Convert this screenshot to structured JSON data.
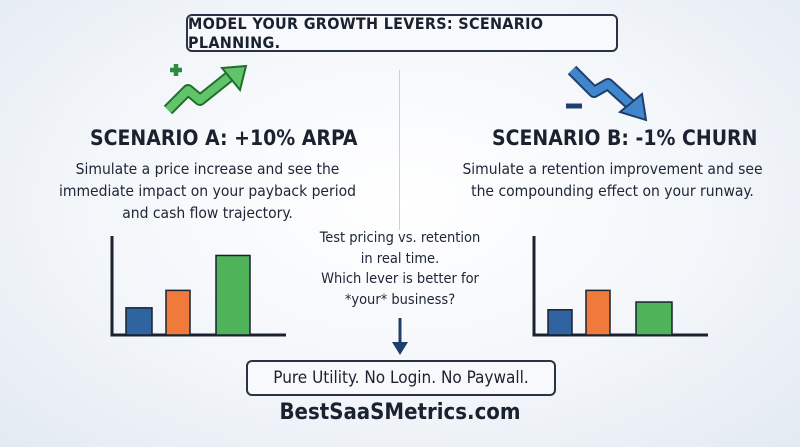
{
  "title": "MODEL YOUR GROWTH LEVERS: SCENARIO PLANNING.",
  "scenario_a": {
    "heading": "SCENARIO A: +10% ARPA",
    "description": "Simulate a price increase and see the immediate impact on your payback period and cash flow trajectory.",
    "icon": "trending-up-plus-icon"
  },
  "scenario_b": {
    "heading": "SCENARIO B: -1% CHURN",
    "description": "Simulate a retention improvement and see the compounding effect on your runway.",
    "icon": "trending-down-minus-icon"
  },
  "center": {
    "lines": [
      "Test pricing vs. retention",
      "in real time.",
      "Which lever is better for",
      "*your* business?"
    ]
  },
  "footer": "Pure Utility. No Login. No Paywall.",
  "site": "BestSaaSMetrics.com",
  "colors": {
    "blue": "#2f64a0",
    "orange": "#f07a3c",
    "green": "#4fb35a",
    "dark": "#1a2230"
  },
  "chart_data": [
    {
      "type": "bar",
      "categories": [
        "",
        "",
        ""
      ],
      "values": [
        28,
        46,
        82
      ],
      "ylim": [
        0,
        100
      ],
      "xlabel": "",
      "ylabel": ""
    },
    {
      "type": "bar",
      "categories": [
        "",
        "",
        ""
      ],
      "values": [
        26,
        46,
        34
      ],
      "ylim": [
        0,
        100
      ],
      "xlabel": "",
      "ylabel": ""
    }
  ]
}
